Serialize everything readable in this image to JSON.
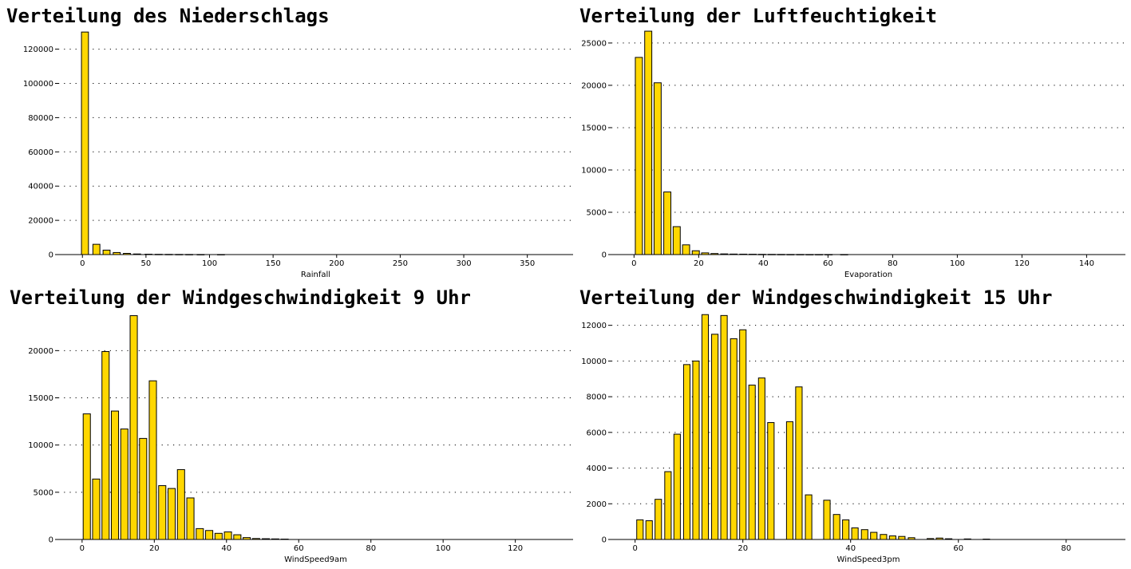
{
  "chart_data": [
    {
      "type": "bar",
      "title": "Verteilung des Niederschlags",
      "xlabel": "Rainfall",
      "ylabel": "",
      "xlim": [
        -19,
        386
      ],
      "ylim": [
        0,
        131000
      ],
      "grid": "y-dotted",
      "bar_width": 5.5,
      "bar_color": "#FFD700",
      "edge_color": "#000000",
      "xticks": [
        0,
        50,
        100,
        150,
        200,
        250,
        300,
        350
      ],
      "yticks": [
        0,
        20000,
        40000,
        60000,
        80000,
        100000,
        120000
      ],
      "x": [
        2,
        11,
        19,
        27,
        35,
        43,
        52,
        60,
        68,
        76,
        84,
        93,
        109
      ],
      "values": [
        130000,
        6000,
        2600,
        1200,
        700,
        350,
        220,
        150,
        120,
        90,
        70,
        50,
        40
      ]
    },
    {
      "type": "bar",
      "title": "Verteilung der Luftfeuchtigkeit",
      "xlabel": "Evaporation",
      "ylabel": "",
      "xlim": [
        -7,
        152
      ],
      "ylim": [
        0,
        26500
      ],
      "grid": "y-dotted",
      "bar_width": 2.2,
      "bar_color": "#FFD700",
      "edge_color": "#000000",
      "xticks": [
        0,
        20,
        40,
        60,
        80,
        100,
        120,
        140
      ],
      "yticks": [
        0,
        5000,
        10000,
        15000,
        20000,
        25000
      ],
      "x": [
        1.5,
        4.4,
        7.3,
        10.3,
        13.2,
        16.1,
        19.1,
        22.0,
        24.9,
        27.9,
        30.8,
        33.8,
        36.7,
        39.6,
        42.6,
        45.5,
        48.4,
        51.4,
        54.3,
        57.2,
        60.2,
        65.0
      ],
      "values": [
        23300,
        26400,
        20300,
        7400,
        3300,
        1150,
        450,
        200,
        120,
        80,
        60,
        50,
        40,
        30,
        25,
        20,
        15,
        15,
        10,
        10,
        10,
        10
      ]
    },
    {
      "type": "bar",
      "title": "Verteilung der Windgeschwindigkeit 9 Uhr",
      "xlabel": "WindSpeed9am",
      "ylabel": "",
      "xlim": [
        -6.6,
        136
      ],
      "ylim": [
        0,
        24000
      ],
      "grid": "y-dotted",
      "bar_width": 2.0,
      "bar_color": "#FFD700",
      "edge_color": "#000000",
      "xticks": [
        0,
        20,
        40,
        60,
        80,
        100,
        120
      ],
      "yticks": [
        0,
        5000,
        10000,
        15000,
        20000
      ],
      "x": [
        1.3,
        3.9,
        6.5,
        9.1,
        11.7,
        14.3,
        16.9,
        19.6,
        22.2,
        24.8,
        27.4,
        30.0,
        32.6,
        35.2,
        37.8,
        40.4,
        43.0,
        45.6,
        48.2,
        50.9,
        53.5,
        56.1
      ],
      "values": [
        13300,
        6400,
        19900,
        13600,
        11700,
        23700,
        10700,
        16800,
        5700,
        5400,
        7400,
        4400,
        1150,
        950,
        650,
        800,
        500,
        200,
        100,
        80,
        60,
        40
      ]
    },
    {
      "type": "bar",
      "title": "Verteilung der Windgeschwindigkeit 15 Uhr",
      "xlabel": "WindSpeed3pm",
      "ylabel": "",
      "xlim": [
        -4.4,
        91
      ],
      "ylim": [
        0,
        12700
      ],
      "grid": "y-dotted",
      "bar_width": 1.2,
      "bar_color": "#FFD700",
      "edge_color": "#000000",
      "xticks": [
        0,
        20,
        40,
        60,
        80
      ],
      "yticks": [
        0,
        2000,
        4000,
        6000,
        8000,
        10000,
        12000
      ],
      "x": [
        0.9,
        2.6,
        4.3,
        6.1,
        7.8,
        9.6,
        11.3,
        13.0,
        14.8,
        16.5,
        18.3,
        20.0,
        21.7,
        23.5,
        25.2,
        28.7,
        30.4,
        32.2,
        35.6,
        37.4,
        39.1,
        40.8,
        42.6,
        44.3,
        46.1,
        47.8,
        49.5,
        51.3,
        54.8,
        56.5,
        58.2,
        61.7,
        65.2
      ],
      "values": [
        1100,
        1050,
        2250,
        3800,
        5900,
        9800,
        10000,
        12600,
        11500,
        12550,
        11250,
        11750,
        8650,
        9050,
        6550,
        6600,
        8550,
        2500,
        2200,
        1400,
        1100,
        650,
        550,
        400,
        280,
        200,
        170,
        100,
        50,
        80,
        40,
        30,
        20
      ]
    }
  ]
}
